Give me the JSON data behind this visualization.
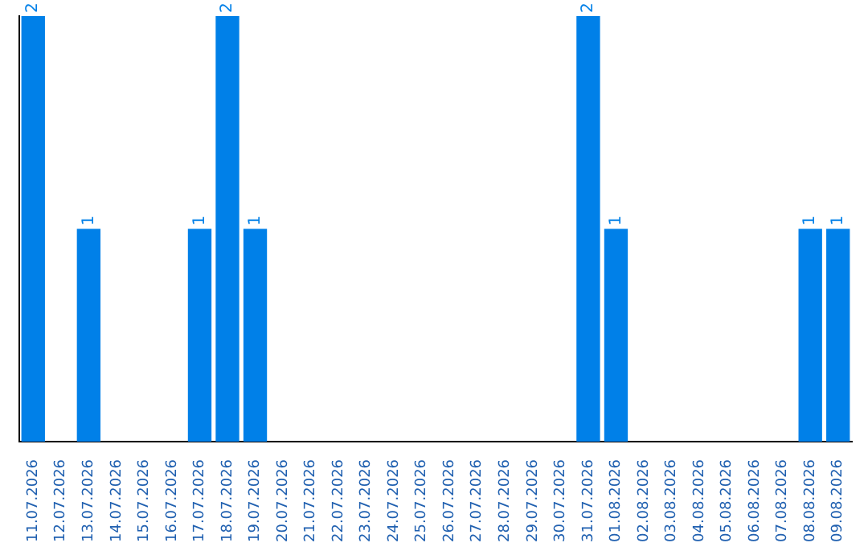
{
  "chart_data": {
    "type": "bar",
    "categories": [
      "11.07.2026",
      "12.07.2026",
      "13.07.2026",
      "14.07.2026",
      "15.07.2026",
      "16.07.2026",
      "17.07.2026",
      "18.07.2026",
      "19.07.2026",
      "20.07.2026",
      "21.07.2026",
      "22.07.2026",
      "23.07.2026",
      "24.07.2026",
      "25.07.2026",
      "26.07.2026",
      "27.07.2026",
      "28.07.2026",
      "29.07.2026",
      "30.07.2026",
      "31.07.2026",
      "01.08.2026",
      "02.08.2026",
      "03.08.2026",
      "04.08.2026",
      "05.08.2026",
      "06.08.2026",
      "07.08.2026",
      "08.08.2026",
      "09.08.2026"
    ],
    "values": [
      2,
      0,
      1,
      0,
      0,
      0,
      1,
      2,
      1,
      0,
      0,
      0,
      0,
      0,
      0,
      0,
      0,
      0,
      0,
      0,
      2,
      1,
      0,
      0,
      0,
      0,
      0,
      0,
      1,
      1
    ],
    "value_labels": [
      "2",
      null,
      "1",
      null,
      null,
      null,
      "1",
      "2",
      "1",
      null,
      null,
      null,
      null,
      null,
      null,
      null,
      null,
      null,
      null,
      null,
      "2",
      "1",
      null,
      null,
      null,
      null,
      null,
      null,
      "1",
      "1"
    ],
    "color": "#0080e8",
    "tick_labels": "x",
    "grid": false,
    "legend": false
  }
}
